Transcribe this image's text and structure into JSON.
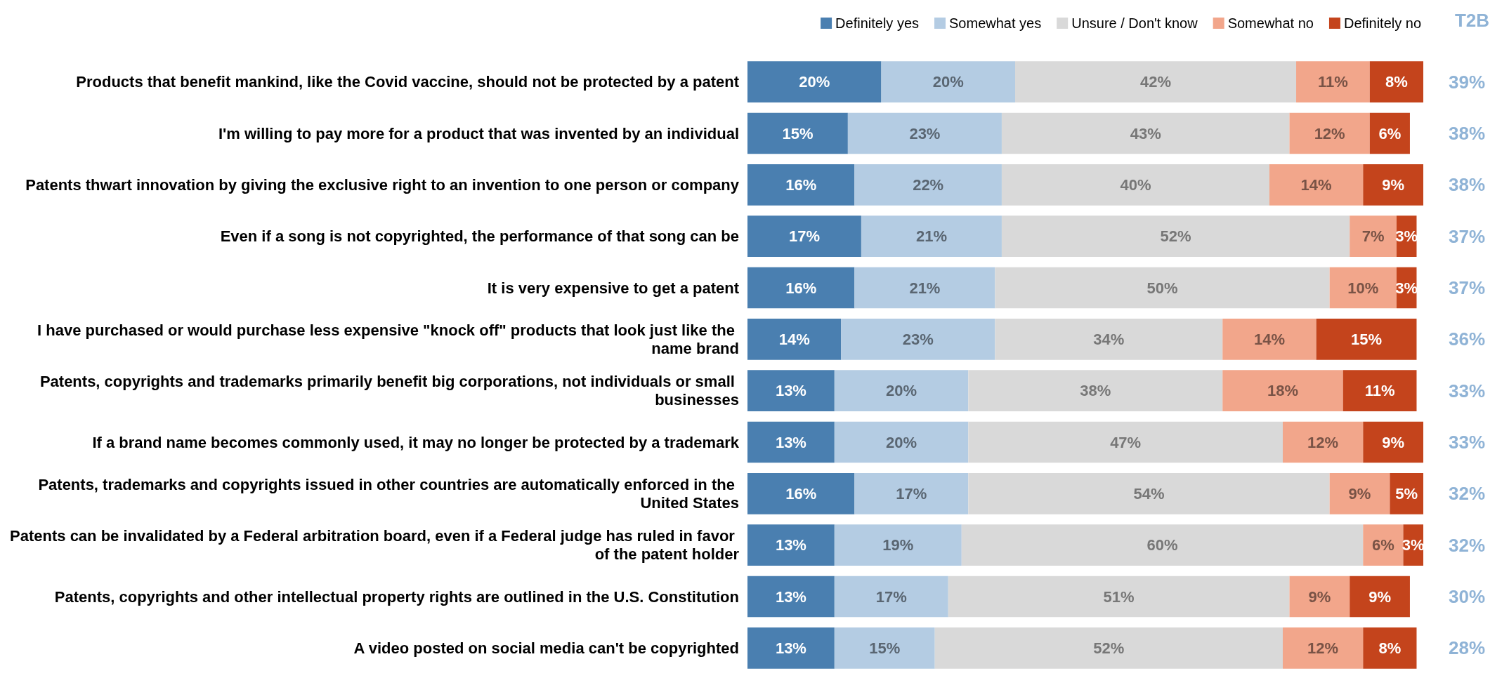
{
  "chart_data": {
    "type": "bar",
    "orientation": "horizontal",
    "stacked": true,
    "legend": "top right",
    "tick_labels": "y",
    "categories": [
      "Products that benefit mankind, like the Covid vaccine, should not be protected by a patent",
      "I'm willing to pay more for a product that was invented by an individual",
      "Patents thwart innovation by giving the exclusive right to an invention to one person or company",
      "Even if a song is not copyrighted, the performance of that song can be",
      "It is very expensive to get a patent",
      "I have purchased or would purchase less expensive \"knock off\" products that look just like the name brand",
      "Patents, copyrights and trademarks primarily benefit big corporations, not individuals or small businesses",
      "If a brand name becomes commonly used, it may no longer be protected by a trademark",
      "Patents, trademarks and copyrights issued in other countries are automatically enforced in the United States",
      "Patents can be invalidated by a Federal arbitration board, even if a Federal judge has ruled in favor of the patent holder",
      "Patents, copyrights and other intellectual property rights are outlined in the U.S. Constitution",
      "A video posted on social media can't be copyrighted"
    ],
    "series": [
      {
        "name": "Definitely yes",
        "color": "#4a7fb0",
        "values": [
          20,
          15,
          16,
          17,
          16,
          14,
          13,
          13,
          16,
          13,
          13,
          13
        ],
        "value_labels": [
          "20%",
          "15%",
          "16%",
          "17%",
          "16%",
          "14%",
          "13%",
          "13%",
          "16%",
          "13%",
          "13%",
          "13%"
        ]
      },
      {
        "name": "Somewhat yes",
        "color": "#b4cce3",
        "values": [
          20,
          23,
          22,
          21,
          21,
          23,
          20,
          20,
          17,
          19,
          17,
          15
        ],
        "value_labels": [
          "20%",
          "23%",
          "22%",
          "21%",
          "21%",
          "23%",
          "20%",
          "20%",
          "17%",
          "19%",
          "17%",
          "15%"
        ]
      },
      {
        "name": "Unsure / Don't know",
        "color": "#d9d9d9",
        "values": [
          42,
          43,
          40,
          52,
          50,
          34,
          38,
          47,
          54,
          60,
          51,
          52
        ],
        "value_labels": [
          "42%",
          "43%",
          "40%",
          "52%",
          "50%",
          "34%",
          "38%",
          "47%",
          "54%",
          "60%",
          "51%",
          "52%"
        ]
      },
      {
        "name": "Somewhat no",
        "color": "#f2a68b",
        "values": [
          11,
          12,
          14,
          7,
          10,
          14,
          18,
          12,
          9,
          6,
          9,
          12
        ],
        "value_labels": [
          "11%",
          "12%",
          "14%",
          "7%",
          "10%",
          "14%",
          "18%",
          "12%",
          "9%",
          "6%",
          "9%",
          "12%"
        ]
      },
      {
        "name": "Definitely no",
        "color": "#c4441c",
        "values": [
          8,
          6,
          9,
          3,
          3,
          15,
          11,
          9,
          5,
          3,
          9,
          8
        ],
        "value_labels": [
          "8%",
          "6%",
          "9%",
          "3%",
          "3%",
          "15%",
          "11%",
          "9%",
          "5%",
          "3%",
          "9%",
          "8%"
        ]
      }
    ],
    "annotations": [
      "T2B",
      "39%",
      "38%",
      "38%",
      "37%",
      "37%",
      "36%",
      "33%",
      "33%",
      "32%",
      "32%",
      "30%",
      "28%"
    ]
  }
}
